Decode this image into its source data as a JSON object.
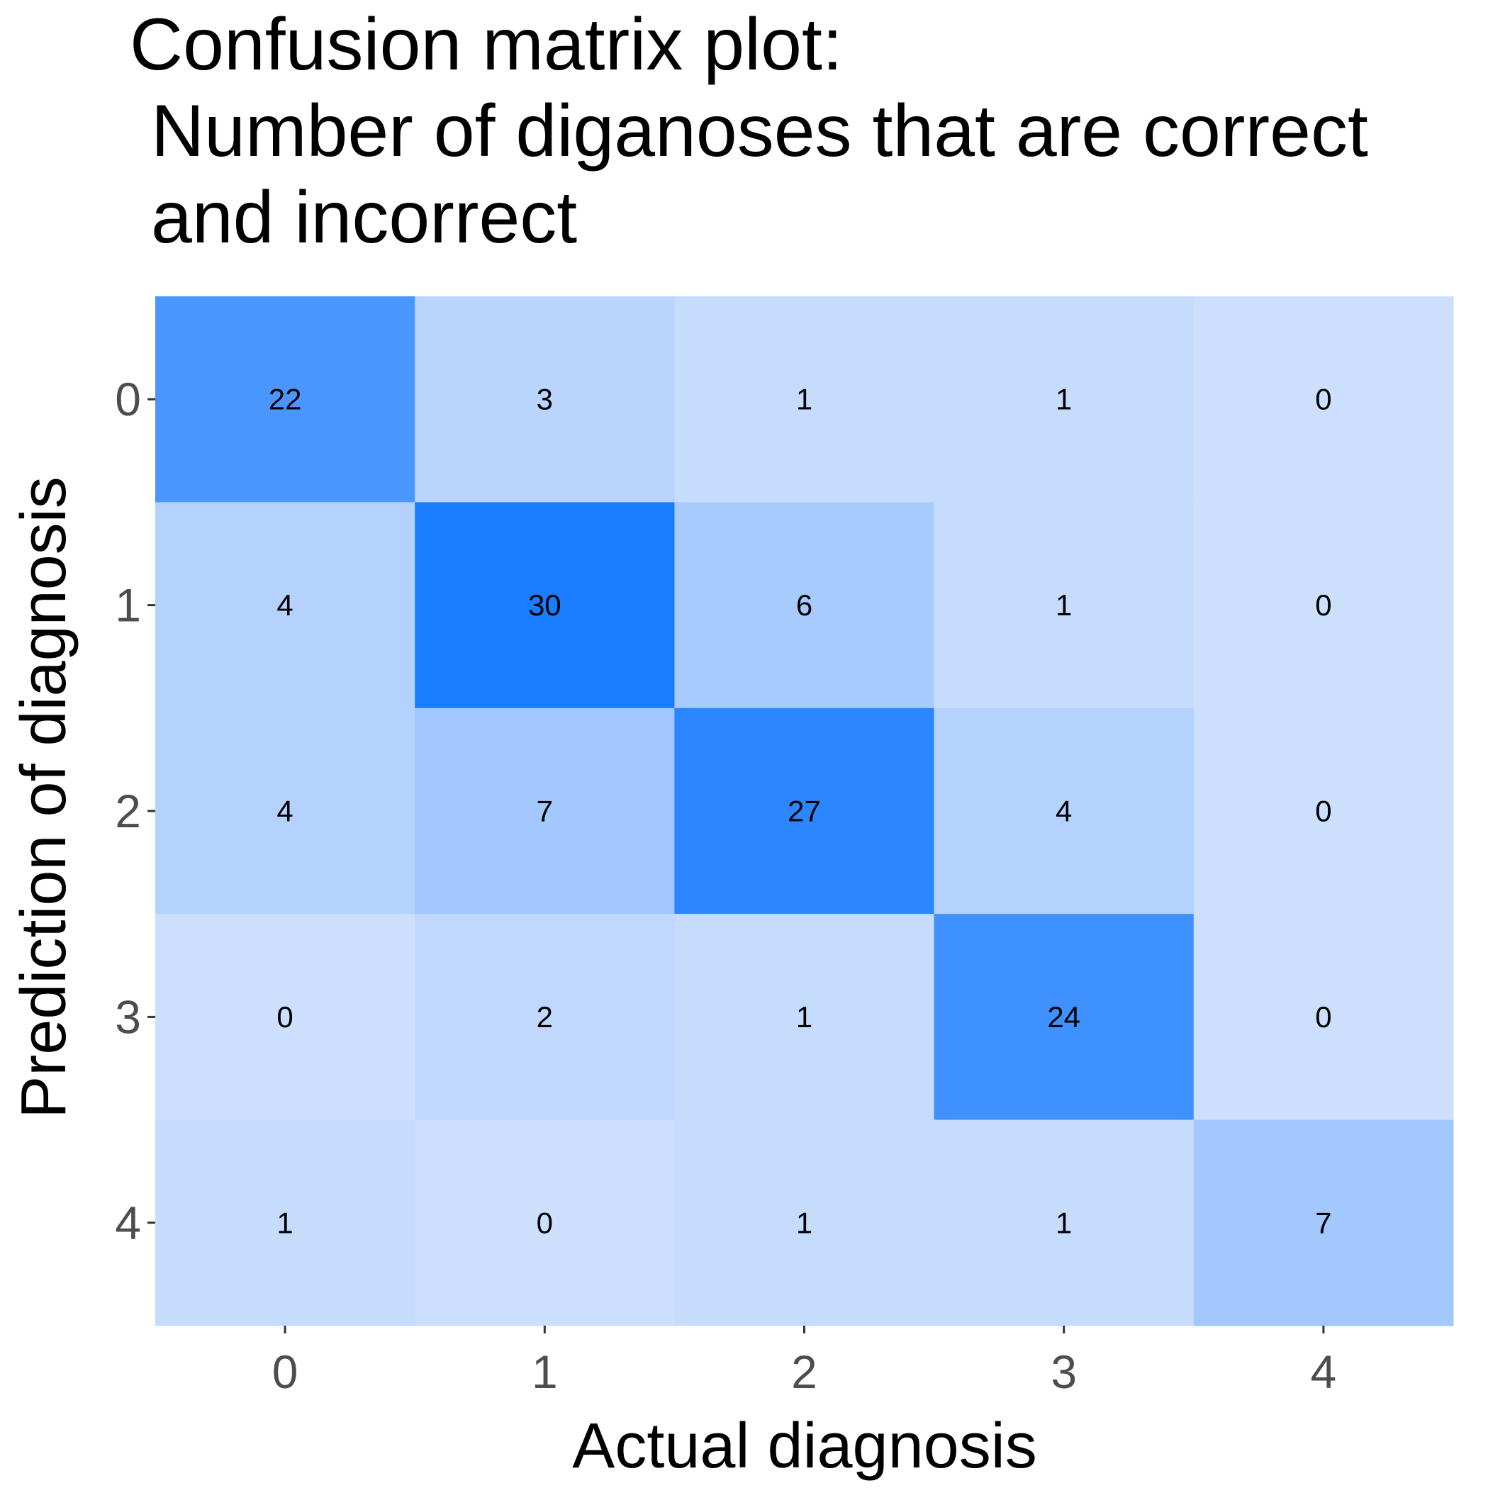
{
  "chart_data": {
    "type": "heatmap",
    "title": "Confusion matrix plot:\n Number of diganoses that are correct\n and incorrect",
    "title_lines": [
      "Confusion matrix plot:",
      "Number of diganoses that are correct",
      "and incorrect"
    ],
    "xlabel": "Actual diagnosis",
    "ylabel": "Prediction of diagnosis",
    "x_categories": [
      "0",
      "1",
      "2",
      "3",
      "4"
    ],
    "y_categories": [
      "0",
      "1",
      "2",
      "3",
      "4"
    ],
    "values": [
      [
        22,
        3,
        1,
        1,
        0
      ],
      [
        4,
        30,
        6,
        1,
        0
      ],
      [
        4,
        7,
        27,
        4,
        0
      ],
      [
        0,
        2,
        1,
        24,
        0
      ],
      [
        1,
        0,
        1,
        1,
        7
      ]
    ],
    "color_scale": {
      "low": "#ccdffd",
      "high": "#1a7dff"
    },
    "grid": false,
    "legend": "none"
  }
}
